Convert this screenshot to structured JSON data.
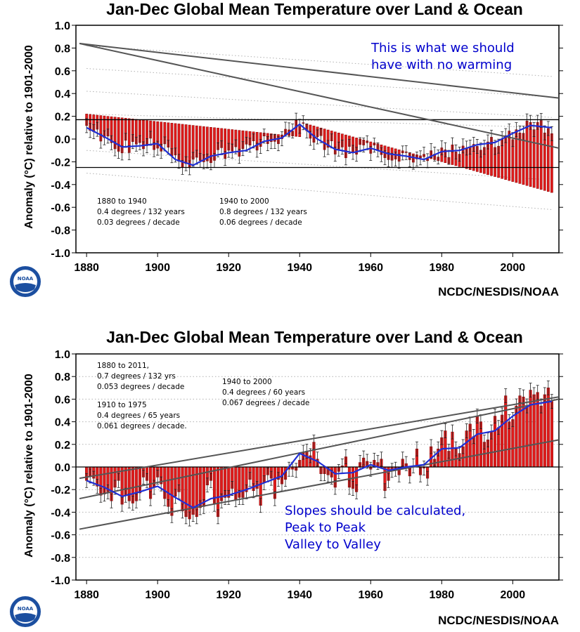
{
  "colors": {
    "bar": "#e01b1b",
    "bar_stroke": "#8b0000",
    "smooth_line": "#1f2fd6",
    "trend_line": "#555555",
    "annotation_blue": "#0000cc",
    "dotted": "#b0b0b0"
  },
  "charts": [
    {
      "title": "Jan-Dec Global Mean Temperature over Land & Ocean",
      "ylabel": "Anomaly (°C) relative to 1901-2000",
      "credit": "NCDC/NESDIS/NOAA",
      "logo_text": "NOAA",
      "blue_note": [
        "This is what we should",
        "have with no warming"
      ],
      "notes": [
        [
          "1880 to 1940",
          "0.4 degrees / 132 years",
          "0.03 degrees / decade"
        ],
        [
          "1940 to 2000",
          "0.8 degrees / 132 years",
          "0.06 degrees / decade"
        ]
      ]
    },
    {
      "title": "Jan-Dec Global Mean Temperature over Land & Ocean",
      "ylabel": "Anomaly (°C) relative to 1901-2000",
      "credit": "NCDC/NESDIS/NOAA",
      "logo_text": "NOAA",
      "blue_note": [
        "Slopes should be calculated,",
        "Peak to Peak",
        "Valley to Valley"
      ],
      "notes": [
        [
          "1880 to 2011,",
          "0.7 degrees / 132 yrs",
          "0.053 degrees / decade"
        ],
        [
          "1910 to 1975",
          "0.4 degrees / 65 years",
          "0.061 degrees / decade."
        ],
        [
          "1940 to 2000",
          "0.4 degrees / 60 years",
          "0.067 degrees / decade"
        ]
      ]
    }
  ],
  "chart_data": [
    {
      "type": "bar",
      "title": "Jan-Dec Global Mean Temperature over Land & Ocean",
      "ylabel": "Anomaly (°C) relative to 1901-2000",
      "xlim": [
        1877,
        2013
      ],
      "ylim": [
        -1.0,
        1.0
      ],
      "xticks": [
        1880,
        1900,
        1920,
        1940,
        1960,
        1980,
        2000
      ],
      "yticks": [
        1.0,
        0.8,
        0.6,
        0.4,
        0.2,
        0.0,
        -0.2,
        -0.4,
        -0.6,
        -0.8,
        -1.0
      ],
      "baseline_segments": [
        {
          "x": [
            1880,
            1940
          ],
          "y": [
            0.22,
            0.02
          ]
        },
        {
          "x": [
            1940,
            2011
          ],
          "y": [
            0.15,
            -0.47
          ]
        }
      ],
      "horizontal_lines": [
        0.17,
        -0.25
      ],
      "trend_lines": [
        {
          "x": [
            1878,
            2013
          ],
          "y": [
            0.84,
            0.36
          ]
        },
        {
          "x": [
            1878,
            2013
          ],
          "y": [
            0.84,
            -0.08
          ]
        }
      ],
      "dotted_lines": [
        {
          "x": [
            1880,
            2011
          ],
          "y": [
            0.82,
            0.55
          ]
        },
        {
          "x": [
            1880,
            2011
          ],
          "y": [
            0.62,
            0.37
          ]
        },
        {
          "x": [
            1880,
            2011
          ],
          "y": [
            0.42,
            0.19
          ]
        },
        {
          "x": [
            1880,
            2011
          ],
          "y": [
            0.22,
            0.1
          ]
        },
        {
          "x": [
            1880,
            2011
          ],
          "y": [
            -0.1,
            -0.36
          ]
        },
        {
          "x": [
            1880,
            2011
          ],
          "y": [
            -0.3,
            -0.62
          ]
        }
      ],
      "smooth": {
        "x": [
          1880,
          1885,
          1890,
          1895,
          1900,
          1905,
          1910,
          1915,
          1920,
          1925,
          1930,
          1935,
          1940,
          1945,
          1950,
          1955,
          1960,
          1965,
          1970,
          1975,
          1980,
          1985,
          1990,
          1995,
          2000,
          2005,
          2011
        ],
        "y": [
          0.1,
          0.02,
          -0.07,
          -0.06,
          -0.04,
          -0.18,
          -0.23,
          -0.15,
          -0.12,
          -0.1,
          -0.02,
          0.01,
          0.13,
          0.0,
          -0.09,
          -0.12,
          -0.08,
          -0.13,
          -0.15,
          -0.18,
          -0.11,
          -0.1,
          -0.05,
          -0.03,
          0.05,
          0.12,
          0.1
        ]
      }
    },
    {
      "type": "bar",
      "title": "Jan-Dec Global Mean Temperature over Land & Ocean",
      "ylabel": "Anomaly (°C) relative to 1901-2000",
      "xlim": [
        1877,
        2013
      ],
      "ylim": [
        -1.0,
        1.0
      ],
      "xticks": [
        1880,
        1900,
        1920,
        1940,
        1960,
        1980,
        2000
      ],
      "yticks": [
        1.0,
        0.8,
        0.6,
        0.4,
        0.2,
        0.0,
        -0.2,
        -0.4,
        -0.6,
        -0.8,
        -1.0
      ],
      "years": [
        1880,
        1881,
        1882,
        1883,
        1884,
        1885,
        1886,
        1887,
        1888,
        1889,
        1890,
        1891,
        1892,
        1893,
        1894,
        1895,
        1896,
        1897,
        1898,
        1899,
        1900,
        1901,
        1902,
        1903,
        1904,
        1905,
        1906,
        1907,
        1908,
        1909,
        1910,
        1911,
        1912,
        1913,
        1914,
        1915,
        1916,
        1917,
        1918,
        1919,
        1920,
        1921,
        1922,
        1923,
        1924,
        1925,
        1926,
        1927,
        1928,
        1929,
        1930,
        1931,
        1932,
        1933,
        1934,
        1935,
        1936,
        1937,
        1938,
        1939,
        1940,
        1941,
        1942,
        1943,
        1944,
        1945,
        1946,
        1947,
        1948,
        1949,
        1950,
        1951,
        1952,
        1953,
        1954,
        1955,
        1956,
        1957,
        1958,
        1959,
        1960,
        1961,
        1962,
        1963,
        1964,
        1965,
        1966,
        1967,
        1968,
        1969,
        1970,
        1971,
        1972,
        1973,
        1974,
        1975,
        1976,
        1977,
        1978,
        1979,
        1980,
        1981,
        1982,
        1983,
        1984,
        1985,
        1986,
        1987,
        1988,
        1989,
        1990,
        1991,
        1992,
        1993,
        1994,
        1995,
        1996,
        1997,
        1998,
        1999,
        2000,
        2001,
        2002,
        2003,
        2004,
        2005,
        2006,
        2007,
        2008,
        2009,
        2010,
        2011
      ],
      "values": [
        -0.12,
        -0.08,
        -0.1,
        -0.17,
        -0.25,
        -0.24,
        -0.22,
        -0.3,
        -0.18,
        -0.12,
        -0.33,
        -0.25,
        -0.3,
        -0.32,
        -0.3,
        -0.23,
        -0.09,
        -0.12,
        -0.28,
        -0.18,
        -0.09,
        -0.15,
        -0.28,
        -0.35,
        -0.43,
        -0.26,
        -0.22,
        -0.39,
        -0.44,
        -0.46,
        -0.42,
        -0.44,
        -0.36,
        -0.35,
        -0.16,
        -0.12,
        -0.33,
        -0.44,
        -0.3,
        -0.27,
        -0.27,
        -0.19,
        -0.29,
        -0.27,
        -0.27,
        -0.22,
        -0.11,
        -0.21,
        -0.19,
        -0.34,
        -0.14,
        -0.07,
        -0.1,
        -0.28,
        -0.11,
        -0.15,
        -0.11,
        -0.02,
        -0.02,
        -0.03,
        0.06,
        0.13,
        0.14,
        0.1,
        0.22,
        0.07,
        -0.06,
        -0.06,
        -0.07,
        -0.09,
        -0.18,
        -0.04,
        0.01,
        0.09,
        -0.18,
        -0.19,
        -0.22,
        0.04,
        0.08,
        0.05,
        -0.02,
        0.06,
        0.04,
        0.07,
        -0.21,
        -0.12,
        -0.03,
        -0.02,
        -0.07,
        0.07,
        0.03,
        -0.08,
        0.01,
        0.16,
        -0.07,
        -0.01,
        -0.1,
        0.18,
        0.07,
        0.16,
        0.26,
        0.32,
        0.14,
        0.31,
        0.16,
        0.12,
        0.18,
        0.32,
        0.38,
        0.27,
        0.45,
        0.4,
        0.22,
        0.24,
        0.31,
        0.45,
        0.35,
        0.46,
        0.63,
        0.4,
        0.42,
        0.54,
        0.63,
        0.62,
        0.54,
        0.68,
        0.64,
        0.66,
        0.54,
        0.64,
        0.7,
        0.58
      ],
      "trend_lines": [
        {
          "x": [
            1878,
            2013
          ],
          "y": [
            -0.1,
            0.62
          ]
        },
        {
          "x": [
            1878,
            2013
          ],
          "y": [
            -0.28,
            0.6
          ]
        },
        {
          "x": [
            1878,
            2013
          ],
          "y": [
            -0.55,
            0.24
          ]
        }
      ],
      "smooth": {
        "x": [
          1880,
          1885,
          1890,
          1895,
          1900,
          1905,
          1910,
          1915,
          1920,
          1925,
          1930,
          1935,
          1940,
          1945,
          1950,
          1955,
          1960,
          1965,
          1970,
          1975,
          1980,
          1985,
          1990,
          1995,
          2000,
          2005,
          2011
        ],
        "y": [
          -0.12,
          -0.18,
          -0.26,
          -0.22,
          -0.17,
          -0.27,
          -0.36,
          -0.28,
          -0.25,
          -0.2,
          -0.14,
          -0.08,
          0.12,
          0.05,
          -0.06,
          -0.05,
          0.02,
          -0.03,
          0.0,
          0.02,
          0.16,
          0.17,
          0.29,
          0.32,
          0.45,
          0.55,
          0.58
        ]
      }
    }
  ]
}
